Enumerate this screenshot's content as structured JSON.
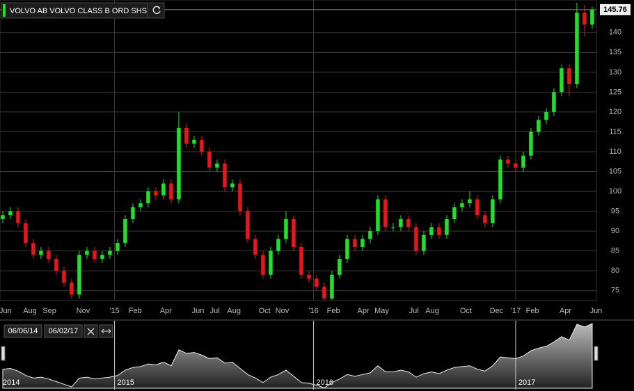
{
  "chart_data": {
    "type": "candlestick",
    "title": "VOLVO AB VOLVO CLASS B ORD SHS",
    "up_color": "#22e02a",
    "down_color": "#e8161b",
    "grid": true,
    "open": [
      93,
      94,
      95,
      92,
      87,
      84,
      85,
      83,
      80,
      77,
      74,
      84,
      85,
      83,
      84,
      85,
      87,
      93,
      96,
      97,
      100,
      99,
      102,
      98,
      116,
      112,
      113,
      110,
      106,
      107,
      101,
      102,
      95,
      88,
      84,
      79,
      85,
      88,
      93,
      86,
      79,
      78,
      76,
      73,
      79,
      83,
      88,
      86,
      88,
      90,
      98,
      91,
      91,
      93,
      91,
      85,
      89,
      91,
      89,
      93,
      96,
      97,
      98,
      94,
      92,
      98,
      108,
      107,
      106,
      109,
      115,
      118,
      120,
      125,
      131,
      127,
      145,
      142
    ],
    "high": [
      95,
      96,
      96,
      93,
      88,
      86,
      86,
      84,
      81,
      78,
      85,
      86,
      86,
      85,
      86,
      88,
      94,
      97,
      98,
      101,
      101,
      103,
      103,
      120,
      117,
      114,
      114,
      111,
      108,
      108,
      103,
      103,
      96,
      89,
      85,
      86,
      89,
      95,
      94,
      87,
      80,
      79,
      77,
      80,
      84,
      89,
      89,
      89,
      91,
      99,
      99,
      92,
      94,
      94,
      92,
      90,
      92,
      92,
      94,
      97,
      98,
      100,
      99,
      95,
      99,
      109,
      109,
      108,
      110,
      116,
      119,
      121,
      126,
      132,
      132,
      147.5,
      147,
      146.5
    ],
    "low": [
      92,
      93,
      91,
      86,
      83,
      83,
      82,
      79,
      76,
      73,
      73,
      83,
      82,
      82,
      83,
      84,
      86,
      92,
      95,
      96,
      98,
      98,
      97,
      97,
      111,
      111,
      109,
      105,
      105,
      100,
      100,
      94,
      87,
      83,
      78,
      78,
      84,
      87,
      85,
      78,
      77,
      75,
      72.6,
      72.6,
      78,
      82,
      85,
      85,
      87,
      89,
      90,
      90,
      90,
      90,
      84,
      84,
      88,
      88,
      88,
      92,
      95,
      96,
      93,
      91,
      91,
      97,
      106,
      105,
      105,
      108,
      114,
      117,
      119,
      124,
      124,
      126,
      139,
      141
    ],
    "close": [
      94,
      95,
      92,
      87,
      84,
      85,
      83,
      80,
      77,
      74,
      84,
      85,
      83,
      84,
      85,
      87,
      93,
      96,
      97,
      100,
      99,
      102,
      98,
      116,
      112,
      113,
      110,
      106,
      107,
      101,
      102,
      95,
      88,
      84,
      79,
      85,
      88,
      93,
      86,
      79,
      78,
      76,
      73,
      79,
      83,
      88,
      86,
      88,
      90,
      98,
      91,
      91,
      93,
      91,
      85,
      89,
      91,
      89,
      93,
      96,
      97,
      98,
      94,
      92,
      98,
      108,
      107,
      106,
      109,
      115,
      118,
      120,
      125,
      131,
      127,
      145,
      142,
      145.76
    ],
    "ylim": [
      72.5,
      148.2
    ],
    "yticks": [
      75,
      80,
      85,
      90,
      95,
      100,
      105,
      110,
      115,
      120,
      125,
      130,
      135,
      140
    ],
    "xlim": [
      -0.36,
      77.55
    ],
    "xticks": [
      {
        "value": 0.36,
        "label": "Jun"
      },
      {
        "value": 3.55,
        "label": "Aug"
      },
      {
        "value": 6.1,
        "label": "Sep"
      },
      {
        "value": 10.5,
        "label": "Nov"
      },
      {
        "value": 14.6,
        "label": "'15"
      },
      {
        "value": 17.3,
        "label": "Feb"
      },
      {
        "value": 21.3,
        "label": "Apr"
      },
      {
        "value": 25.5,
        "label": "Jun"
      },
      {
        "value": 27.7,
        "label": "Jul"
      },
      {
        "value": 30.2,
        "label": "Aug"
      },
      {
        "value": 34.2,
        "label": "Oct"
      },
      {
        "value": 36.5,
        "label": "Nov"
      },
      {
        "value": 40.6,
        "label": "'16"
      },
      {
        "value": 43.2,
        "label": "Feb"
      },
      {
        "value": 47.1,
        "label": "Apr"
      },
      {
        "value": 49.5,
        "label": "May"
      },
      {
        "value": 53.7,
        "label": "Jul"
      },
      {
        "value": 56.1,
        "label": "Aug"
      },
      {
        "value": 60.5,
        "label": "Oct"
      },
      {
        "value": 64.5,
        "label": "Dec"
      },
      {
        "value": 67,
        "label": "'17"
      },
      {
        "value": 69.2,
        "label": "Feb"
      },
      {
        "value": 73.5,
        "label": "Apr"
      },
      {
        "value": 77.5,
        "label": "Jun"
      }
    ],
    "navigator": {
      "start": "06/06/14",
      "end": "06/02/17",
      "years": [
        "2014",
        "2015",
        "2016",
        "2017"
      ]
    }
  }
}
